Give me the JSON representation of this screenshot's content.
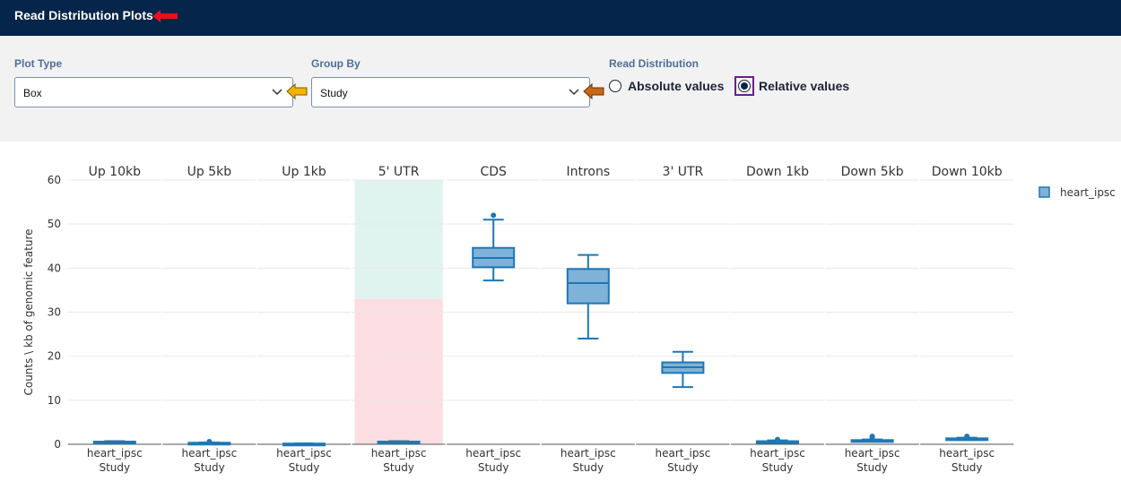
{
  "header": {
    "title": "Read Distribution Plots"
  },
  "controls": {
    "plot_type": {
      "label": "Plot Type",
      "value": "Box"
    },
    "group_by": {
      "label": "Group By",
      "value": "Study"
    },
    "read_distribution": {
      "label": "Read Distribution",
      "options": [
        {
          "label": "Absolute values",
          "selected": false
        },
        {
          "label": "Relative values",
          "selected": true
        }
      ]
    }
  },
  "colors": {
    "box_fill": "#7fb2d9",
    "box_stroke": "#1f77b4",
    "highlight_green": "#dff3ef",
    "highlight_red": "#fbdde2",
    "arrow_red": "#e8101a",
    "arrow_yellow": "#f4b300",
    "arrow_orange": "#c8661a"
  },
  "chart_data": {
    "type": "box",
    "ylabel": "Counts \\ kb of genomic feature",
    "ylim": [
      0,
      60
    ],
    "yticks": [
      0,
      10,
      20,
      30,
      40,
      50,
      60
    ],
    "grid": true,
    "legend": {
      "position": "top-right",
      "entries": [
        "heart_ipsc"
      ]
    },
    "x_category": "heart_ipsc",
    "x_group_label": "Study",
    "panels": [
      {
        "title": "Up 10kb",
        "min": 0.2,
        "q1": 0.4,
        "median": 0.5,
        "q3": 0.6,
        "max": 0.7,
        "outliers": []
      },
      {
        "title": "Up 5kb",
        "min": 0.2,
        "q1": 0.25,
        "median": 0.3,
        "q3": 0.35,
        "max": 0.4,
        "outliers": [
          0.6
        ]
      },
      {
        "title": "Up 1kb",
        "min": 0.05,
        "q1": 0.1,
        "median": 0.12,
        "q3": 0.15,
        "max": 0.2,
        "outliers": []
      },
      {
        "title": "5' UTR",
        "min": 0.3,
        "q1": 0.45,
        "median": 0.5,
        "q3": 0.6,
        "max": 0.7,
        "outliers": [],
        "band_green": [
          33,
          60
        ],
        "band_red": [
          0,
          33
        ]
      },
      {
        "title": "CDS",
        "min": 37.2,
        "q1": 40.2,
        "median": 42.3,
        "q3": 44.6,
        "max": 51,
        "outliers": [
          52
        ]
      },
      {
        "title": "Introns",
        "min": 24,
        "q1": 32,
        "median": 36.6,
        "q3": 39.8,
        "max": 43,
        "outliers": []
      },
      {
        "title": "3' UTR",
        "min": 13,
        "q1": 16.2,
        "median": 17.5,
        "q3": 18.6,
        "max": 21,
        "outliers": []
      },
      {
        "title": "Down 1kb",
        "min": 0.3,
        "q1": 0.5,
        "median": 0.6,
        "q3": 0.7,
        "max": 0.9,
        "outliers": [
          1.1
        ]
      },
      {
        "title": "Down 5kb",
        "min": 0.7,
        "q1": 0.85,
        "median": 0.9,
        "q3": 0.95,
        "max": 1.1,
        "outliers": [
          1.5,
          1.8
        ]
      },
      {
        "title": "Down 10kb",
        "min": 1.0,
        "q1": 1.15,
        "median": 1.25,
        "q3": 1.35,
        "max": 1.5,
        "outliers": [
          1.8
        ]
      }
    ]
  }
}
